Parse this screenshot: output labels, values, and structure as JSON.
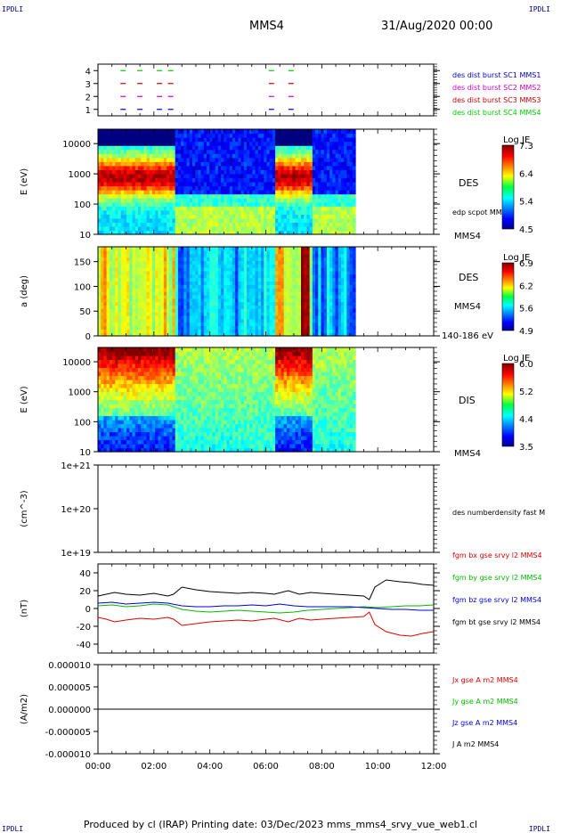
{
  "header": {
    "corner_left": "IPDLI",
    "corner_right": "IPDLI",
    "spacecraft": "MMS4",
    "datetime": "31/Aug/2020 00:00"
  },
  "footer": {
    "text": "Produced by cl (IRAP)   Printing date: 03/Dec/2023   mms_mms4_srvy_vue_web1.cl",
    "corner_left": "IPDLI",
    "corner_right": "IPDLI"
  },
  "colors": {
    "sc1": "#0000cc",
    "sc2": "#cc00cc",
    "sc3": "#cc0000",
    "sc4": "#00cc00",
    "bx": "#dd0000",
    "by": "#00bb00",
    "bz": "#0000dd",
    "bt": "#000000"
  },
  "chart_data": [
    {
      "type": "scatter",
      "id": "burst_availability",
      "ylabel": "",
      "yticks": [
        "1",
        "2",
        "3",
        "4"
      ],
      "legend": [
        {
          "name": "des dist burst SC1 MMS1",
          "color": "#0000cc"
        },
        {
          "name": "des dist burst SC2 MMS2",
          "color": "#cc00cc"
        },
        {
          "name": "des dist burst SC3 MMS3",
          "color": "#cc0000"
        },
        {
          "name": "des dist burst SC4 MMS4",
          "color": "#00cc00"
        }
      ],
      "series": [
        {
          "level": 4,
          "color": "#00cc00",
          "times_h": [
            0.9,
            1.5,
            2.2,
            2.6,
            6.2,
            6.9
          ]
        },
        {
          "level": 3,
          "color": "#cc0000",
          "times_h": [
            0.9,
            1.5,
            2.2,
            2.6,
            6.2,
            6.9
          ]
        },
        {
          "level": 2,
          "color": "#cc00cc",
          "times_h": [
            0.9,
            1.5,
            2.2,
            2.6,
            6.2,
            6.9
          ]
        },
        {
          "level": 1,
          "color": "#0000cc",
          "times_h": [
            0.9,
            1.5,
            2.2,
            2.6,
            6.2,
            6.9
          ]
        }
      ]
    },
    {
      "type": "heatmap",
      "id": "des_energy",
      "ylabel": "E (eV)",
      "yticks": [
        "10",
        "100",
        "1000",
        "10000"
      ],
      "ylim": [
        10,
        30000
      ],
      "yscale": "log",
      "label": "DES",
      "extra_label": "edp scpot MMS4",
      "sc_label": "MMS4",
      "colorbar": {
        "title": "Log JE",
        "ticks": [
          "7.3",
          "6.4",
          "5.4",
          "4.5"
        ],
        "range": [
          4.5,
          7.3
        ]
      }
    },
    {
      "type": "heatmap",
      "id": "des_pitch",
      "ylabel": "a (deg)",
      "yticks": [
        "0",
        "50",
        "100",
        "150"
      ],
      "ylim": [
        0,
        180
      ],
      "label": "DES",
      "sc_label": "MMS4",
      "extra_label": "140-186 eV",
      "colorbar": {
        "title": "Log JE",
        "ticks": [
          "6.9",
          "6.2",
          "5.6",
          "4.9"
        ],
        "range": [
          4.9,
          6.9
        ]
      }
    },
    {
      "type": "heatmap",
      "id": "dis_energy",
      "ylabel": "E (eV)",
      "yticks": [
        "10",
        "100",
        "1000",
        "10000"
      ],
      "ylim": [
        10,
        30000
      ],
      "yscale": "log",
      "label": "DIS",
      "sc_label": "MMS4",
      "colorbar": {
        "title": "Log JE",
        "ticks": [
          "6.0",
          "5.2",
          "4.4",
          "3.5"
        ],
        "range": [
          3.5,
          6.0
        ]
      }
    },
    {
      "type": "line",
      "id": "density",
      "ylabel": "(cm^-3)",
      "yticks": [
        "1e+19",
        "1e+20",
        "1e+21"
      ],
      "legend": [
        {
          "name": "des numberdensity fast M",
          "color": "#000000"
        }
      ],
      "series": []
    },
    {
      "type": "line",
      "id": "fgm",
      "ylabel": "(nT)",
      "yticks": [
        "-40",
        "-20",
        "0",
        "20",
        "40"
      ],
      "ylim": [
        -50,
        50
      ],
      "legend": [
        {
          "name": "fgm bx gse srvy l2 MMS4",
          "color": "#dd0000"
        },
        {
          "name": "fgm by gse srvy l2 MMS4",
          "color": "#00bb00"
        },
        {
          "name": "fgm bz gse srvy l2 MMS4",
          "color": "#0000dd"
        },
        {
          "name": "fgm bt gse srvy l2 MMS4",
          "color": "#000000"
        }
      ],
      "series": [
        {
          "name": "bt",
          "color": "#000000",
          "t": [
            0,
            0.3,
            0.6,
            1.0,
            1.5,
            2.0,
            2.5,
            2.7,
            3.0,
            3.5,
            4.0,
            4.5,
            5.0,
            5.5,
            6.0,
            6.3,
            6.8,
            7.2,
            7.6,
            8.0,
            8.5,
            9.0,
            9.5,
            9.7,
            9.9,
            10.3,
            10.8,
            11.2,
            11.6,
            12.0
          ],
          "v": [
            14,
            16,
            18,
            16,
            15,
            17,
            14,
            16,
            24,
            21,
            19,
            18,
            17,
            18,
            17,
            16,
            20,
            16,
            18,
            17,
            16,
            15,
            14,
            10,
            24,
            32,
            30,
            29,
            27,
            26
          ]
        },
        {
          "name": "bx",
          "color": "#dd0000",
          "t": [
            0,
            0.3,
            0.6,
            1.0,
            1.5,
            2.0,
            2.5,
            2.7,
            3.0,
            3.5,
            4.0,
            4.5,
            5.0,
            5.5,
            6.0,
            6.3,
            6.8,
            7.2,
            7.6,
            8.0,
            8.5,
            9.0,
            9.5,
            9.7,
            9.9,
            10.3,
            10.8,
            11.2,
            11.6,
            12.0
          ],
          "v": [
            -10,
            -12,
            -15,
            -13,
            -11,
            -12,
            -10,
            -12,
            -19,
            -17,
            -15,
            -14,
            -13,
            -14,
            -12,
            -11,
            -15,
            -11,
            -13,
            -12,
            -11,
            -10,
            -9,
            -4,
            -18,
            -26,
            -30,
            -31,
            -28,
            -26
          ]
        },
        {
          "name": "by",
          "color": "#00bb00",
          "t": [
            0,
            0.5,
            1.0,
            1.5,
            2.0,
            2.5,
            3.0,
            3.5,
            4.0,
            4.5,
            5.0,
            5.5,
            6.0,
            6.5,
            7.0,
            7.5,
            8.0,
            8.5,
            9.0,
            9.5,
            10.0,
            10.5,
            11.0,
            11.5,
            12.0
          ],
          "v": [
            3,
            4,
            2,
            3,
            5,
            4,
            -1,
            -3,
            -4,
            -3,
            -2,
            -3,
            -4,
            -5,
            -4,
            -2,
            -1,
            0,
            1,
            2,
            1,
            2,
            3,
            3,
            4
          ]
        },
        {
          "name": "bz",
          "color": "#0000dd",
          "t": [
            0,
            0.5,
            1.0,
            1.5,
            2.0,
            2.5,
            3.0,
            3.5,
            4.0,
            4.5,
            5.0,
            5.5,
            6.0,
            6.5,
            7.0,
            7.5,
            8.0,
            8.5,
            9.0,
            9.5,
            10.0,
            10.5,
            11.0,
            11.5,
            12.0
          ],
          "v": [
            6,
            7,
            5,
            6,
            7,
            6,
            3,
            2,
            2,
            3,
            3,
            4,
            3,
            5,
            3,
            2,
            2,
            2,
            2,
            1,
            0,
            -1,
            -1,
            -2,
            -2
          ]
        }
      ]
    },
    {
      "type": "line",
      "id": "current",
      "ylabel": "(A/m2)",
      "yticks": [
        "-0.000010",
        "-0.000005",
        "0.000000",
        "0.000005",
        "0.000010"
      ],
      "ylim": [
        -1e-05,
        1e-05
      ],
      "legend": [
        {
          "name": "Jx gse A m2 MMS4",
          "color": "#dd0000"
        },
        {
          "name": "Jy gse A m2 MMS4",
          "color": "#00bb00"
        },
        {
          "name": "Jz gse A m2 MMS4",
          "color": "#0000dd"
        },
        {
          "name": "J A m2 MMS4",
          "color": "#000000"
        }
      ],
      "series": [
        {
          "name": "J",
          "color": "#000000",
          "t": [
            0,
            12
          ],
          "v": [
            0,
            0
          ]
        }
      ]
    }
  ],
  "xaxis": {
    "ticks": [
      "00:00",
      "02:00",
      "04:00",
      "06:00",
      "08:00",
      "10:00",
      "12:00"
    ],
    "range_h": [
      0,
      12
    ],
    "data_end_h": 9.2
  }
}
